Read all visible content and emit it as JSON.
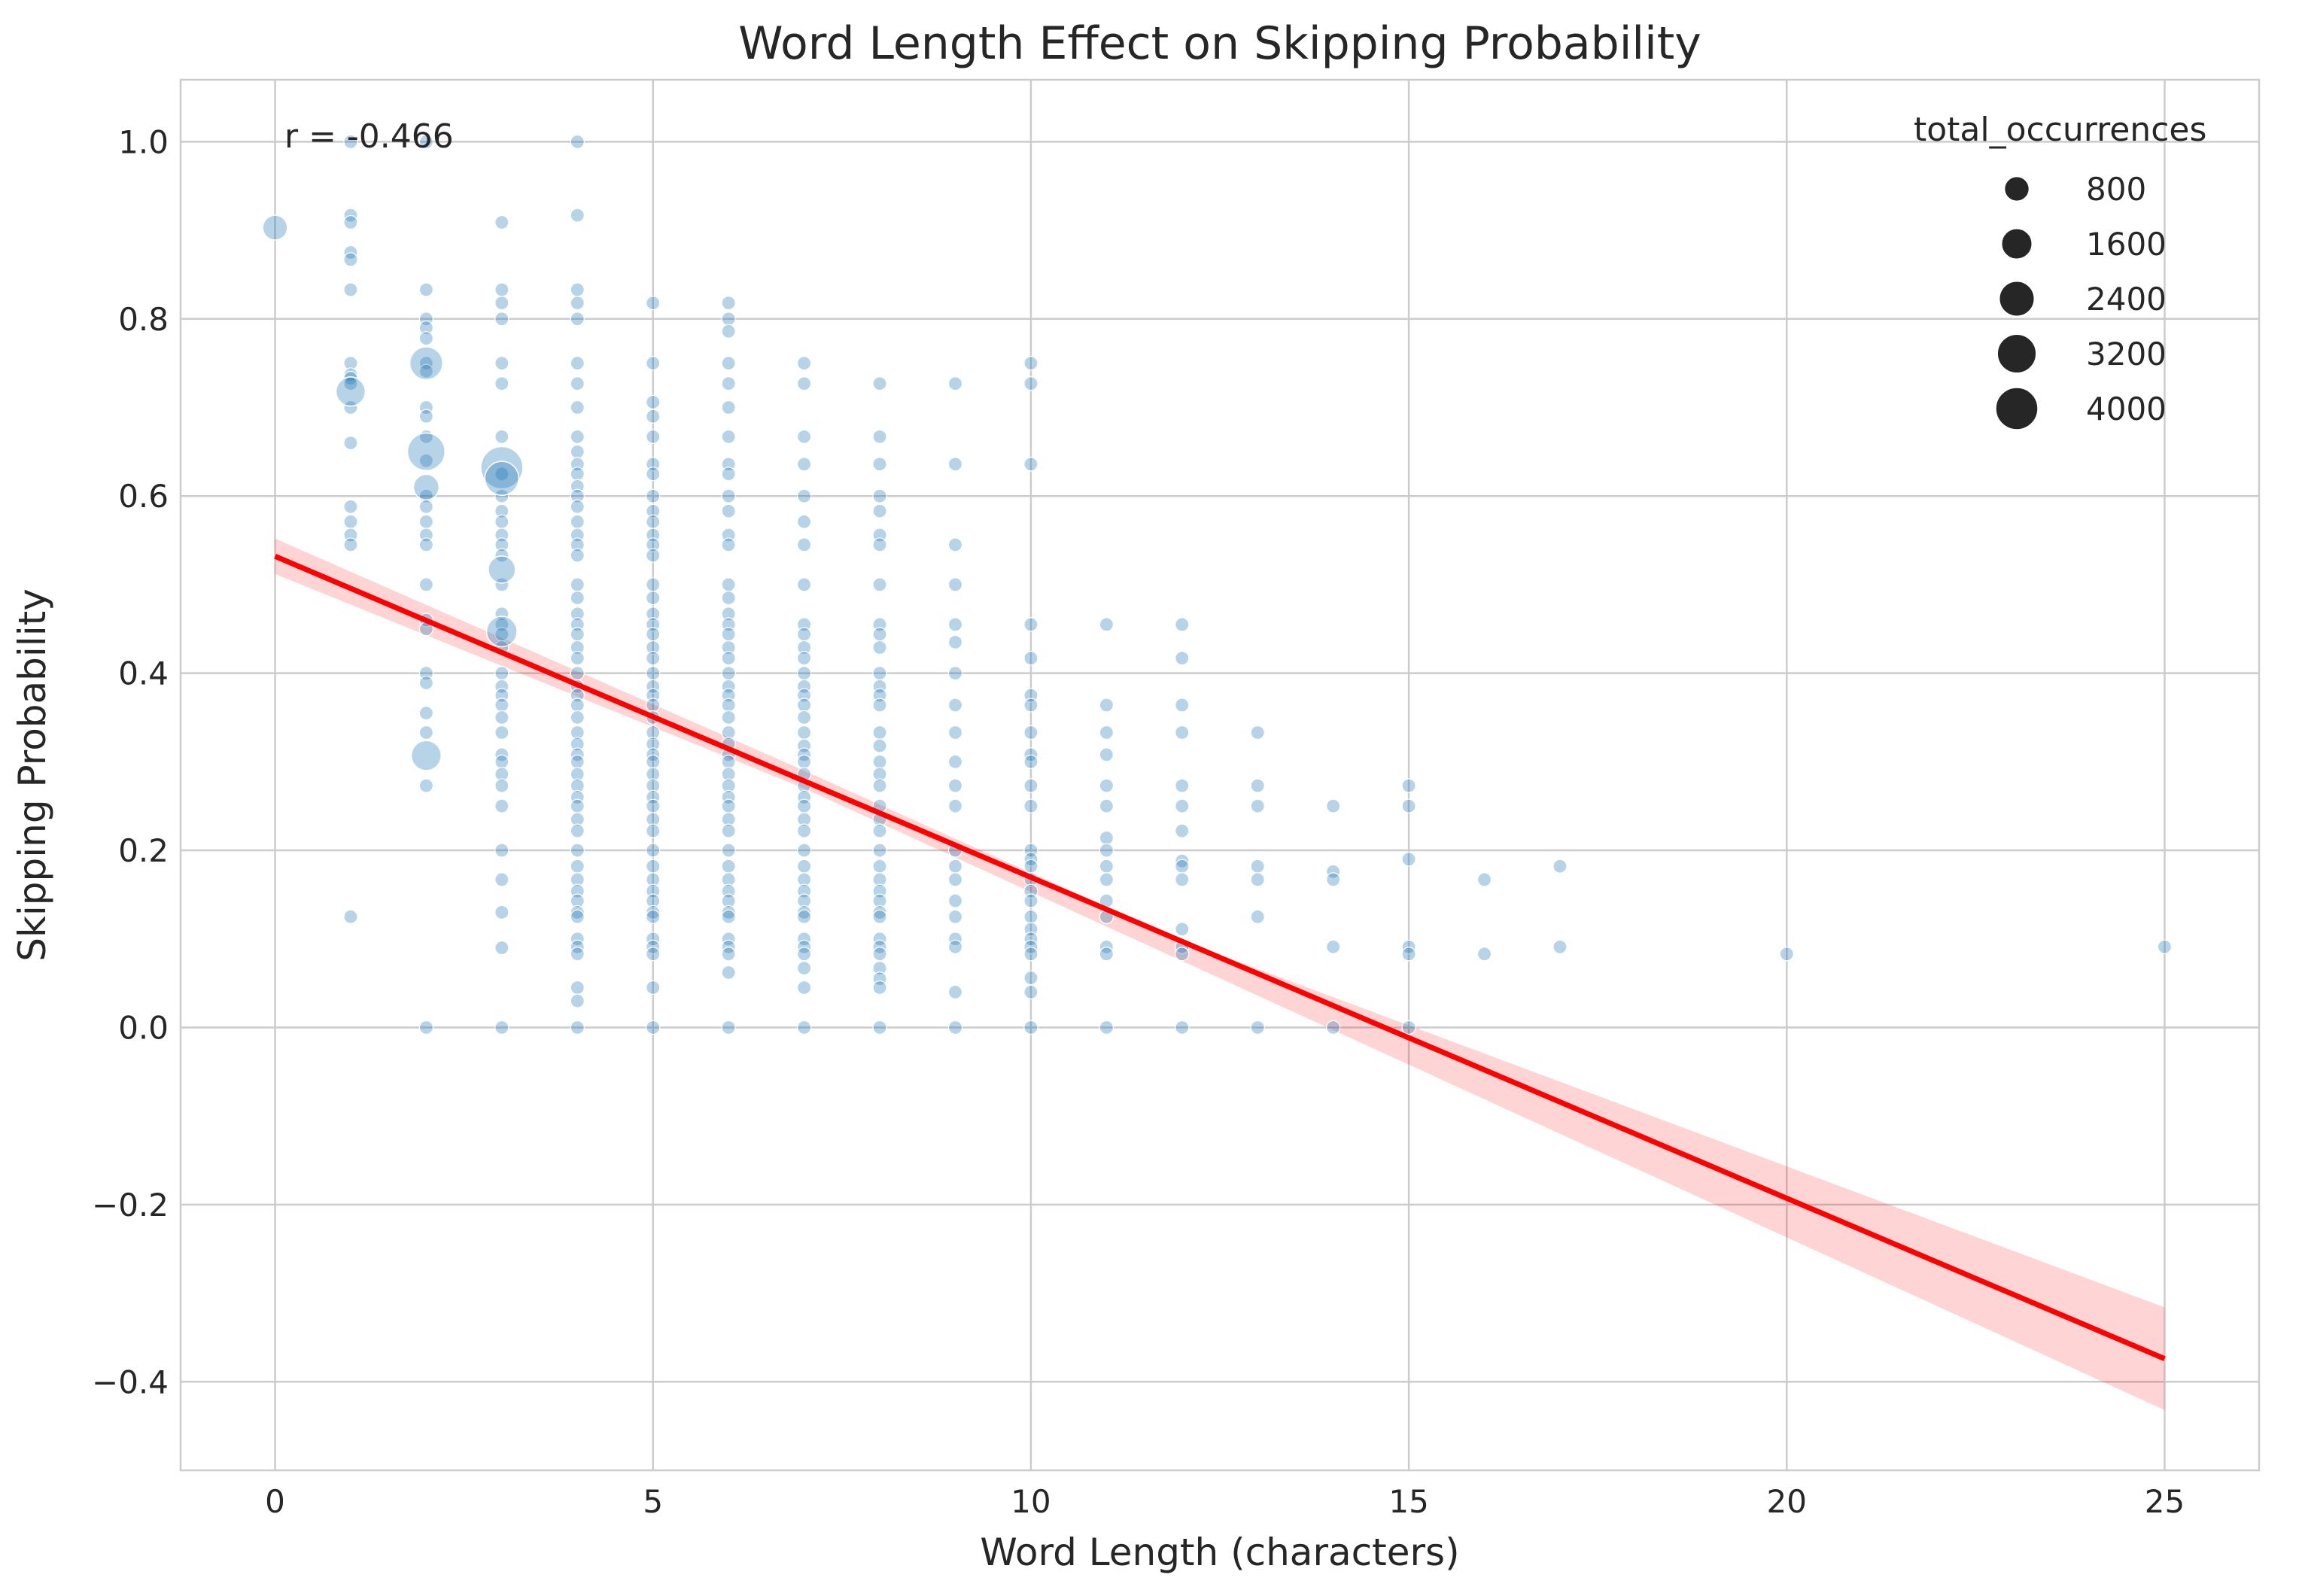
{
  "chart_data": {
    "type": "scatter",
    "title": "Word Length Effect on Skipping Probability",
    "xlabel": "Word Length (characters)",
    "ylabel": "Skipping Probability",
    "xlim": [
      -1.25,
      26.25
    ],
    "ylim": [
      -0.5,
      1.07
    ],
    "x_ticks": [
      0,
      5,
      10,
      15,
      20,
      25
    ],
    "x_tick_labels": [
      "0",
      "5",
      "10",
      "15",
      "20",
      "25"
    ],
    "y_ticks": [
      -0.4,
      -0.2,
      0.0,
      0.2,
      0.4,
      0.6,
      0.8,
      1.0
    ],
    "y_tick_labels": [
      "−0.4",
      "−0.2",
      "0.0",
      "0.2",
      "0.4",
      "0.6",
      "0.8",
      "1.0"
    ],
    "grid": true,
    "annotation": "r = -0.466",
    "legend": {
      "title": "total_occurrences",
      "placement": "top-right",
      "entries": [
        {
          "label": "800",
          "value": 800
        },
        {
          "label": "1600",
          "value": 1600
        },
        {
          "label": "2400",
          "value": 2400
        },
        {
          "label": "3200",
          "value": 3200
        },
        {
          "label": "4000",
          "value": 4000
        }
      ]
    },
    "colors": {
      "points": "#1f77b4",
      "regression": "#ff0000",
      "band": "#ff0000",
      "grid": "#cccccc",
      "frame": "#cccccc"
    },
    "regression": {
      "start": [
        0,
        0.532
      ],
      "end": [
        25,
        -0.374
      ],
      "ci_low": [
        [
          0,
          0.512
        ],
        [
          7,
          0.27
        ],
        [
          12,
          0.075
        ],
        [
          25,
          -0.432
        ]
      ],
      "ci_high": [
        [
          0,
          0.552
        ],
        [
          7,
          0.29
        ],
        [
          12,
          0.098
        ],
        [
          25,
          -0.316
        ]
      ]
    },
    "big_points": [
      {
        "x": 0,
        "y": 0.903,
        "size": 800
      },
      {
        "x": 1,
        "y": 0.718,
        "size": 1400
      },
      {
        "x": 2,
        "y": 0.75,
        "size": 2000
      },
      {
        "x": 2,
        "y": 0.65,
        "size": 2900
      },
      {
        "x": 2,
        "y": 0.61,
        "size": 900
      },
      {
        "x": 2,
        "y": 0.307,
        "size": 1500
      },
      {
        "x": 3,
        "y": 0.632,
        "size": 4000
      },
      {
        "x": 3,
        "y": 0.62,
        "size": 2200
      },
      {
        "x": 3,
        "y": 0.517,
        "size": 1100
      },
      {
        "x": 3,
        "y": 0.447,
        "size": 1600
      }
    ],
    "series": [
      {
        "x": 1,
        "y": [
          1.0,
          0.917,
          0.909,
          0.875,
          0.867,
          0.833,
          0.75,
          0.737,
          0.733,
          0.727,
          0.7,
          0.66,
          0.588,
          0.571,
          0.556,
          0.545,
          0.125
        ]
      },
      {
        "x": 2,
        "y": [
          1.0,
          0.833,
          0.8,
          0.79,
          0.778,
          0.75,
          0.741,
          0.7,
          0.69,
          0.667,
          0.64,
          0.6,
          0.588,
          0.571,
          0.556,
          0.545,
          0.5,
          0.46,
          0.45,
          0.4,
          0.389,
          0.355,
          0.333,
          0.273,
          0.0
        ]
      },
      {
        "x": 3,
        "y": [
          0.909,
          0.833,
          0.818,
          0.8,
          0.75,
          0.727,
          0.667,
          0.625,
          0.6,
          0.583,
          0.571,
          0.556,
          0.545,
          0.533,
          0.5,
          0.467,
          0.455,
          0.444,
          0.429,
          0.4,
          0.385,
          0.375,
          0.364,
          0.35,
          0.333,
          0.308,
          0.3,
          0.286,
          0.273,
          0.25,
          0.2,
          0.167,
          0.13,
          0.09,
          0.0
        ]
      },
      {
        "x": 4,
        "y": [
          1.0,
          0.917,
          0.833,
          0.818,
          0.8,
          0.75,
          0.727,
          0.7,
          0.667,
          0.65,
          0.636,
          0.625,
          0.611,
          0.6,
          0.588,
          0.571,
          0.556,
          0.545,
          0.533,
          0.5,
          0.485,
          0.467,
          0.455,
          0.444,
          0.429,
          0.417,
          0.4,
          0.385,
          0.375,
          0.364,
          0.35,
          0.333,
          0.32,
          0.308,
          0.3,
          0.286,
          0.273,
          0.26,
          0.25,
          0.235,
          0.222,
          0.2,
          0.182,
          0.167,
          0.154,
          0.143,
          0.13,
          0.125,
          0.1,
          0.091,
          0.083,
          0.045,
          0.03,
          0.0
        ]
      },
      {
        "x": 5,
        "y": [
          0.818,
          0.75,
          0.706,
          0.69,
          0.667,
          0.636,
          0.625,
          0.6,
          0.583,
          0.571,
          0.556,
          0.545,
          0.533,
          0.5,
          0.485,
          0.467,
          0.455,
          0.444,
          0.429,
          0.417,
          0.4,
          0.385,
          0.375,
          0.364,
          0.35,
          0.333,
          0.32,
          0.308,
          0.3,
          0.286,
          0.273,
          0.26,
          0.25,
          0.235,
          0.222,
          0.2,
          0.182,
          0.167,
          0.154,
          0.143,
          0.13,
          0.125,
          0.1,
          0.091,
          0.083,
          0.045,
          0.0
        ]
      },
      {
        "x": 6,
        "y": [
          0.818,
          0.8,
          0.786,
          0.75,
          0.727,
          0.7,
          0.667,
          0.636,
          0.625,
          0.6,
          0.583,
          0.556,
          0.545,
          0.5,
          0.485,
          0.467,
          0.455,
          0.444,
          0.429,
          0.417,
          0.4,
          0.385,
          0.375,
          0.364,
          0.35,
          0.333,
          0.32,
          0.308,
          0.3,
          0.286,
          0.273,
          0.26,
          0.25,
          0.235,
          0.222,
          0.2,
          0.182,
          0.167,
          0.154,
          0.143,
          0.13,
          0.125,
          0.1,
          0.091,
          0.083,
          0.062,
          0.0
        ]
      },
      {
        "x": 7,
        "y": [
          0.75,
          0.727,
          0.667,
          0.636,
          0.6,
          0.571,
          0.545,
          0.5,
          0.455,
          0.444,
          0.429,
          0.417,
          0.4,
          0.385,
          0.375,
          0.364,
          0.35,
          0.333,
          0.318,
          0.308,
          0.3,
          0.286,
          0.273,
          0.26,
          0.25,
          0.235,
          0.222,
          0.2,
          0.182,
          0.167,
          0.154,
          0.143,
          0.13,
          0.125,
          0.1,
          0.091,
          0.083,
          0.067,
          0.045,
          0.0
        ]
      },
      {
        "x": 8,
        "y": [
          0.727,
          0.667,
          0.636,
          0.6,
          0.583,
          0.556,
          0.545,
          0.5,
          0.455,
          0.444,
          0.429,
          0.4,
          0.385,
          0.375,
          0.364,
          0.333,
          0.318,
          0.3,
          0.286,
          0.273,
          0.25,
          0.235,
          0.222,
          0.2,
          0.182,
          0.167,
          0.154,
          0.143,
          0.13,
          0.125,
          0.1,
          0.091,
          0.083,
          0.067,
          0.055,
          0.045,
          0.0
        ]
      },
      {
        "x": 9,
        "y": [
          0.727,
          0.636,
          0.545,
          0.5,
          0.455,
          0.435,
          0.4,
          0.364,
          0.333,
          0.3,
          0.273,
          0.25,
          0.2,
          0.182,
          0.167,
          0.143,
          0.125,
          0.1,
          0.091,
          0.04,
          0.0
        ]
      },
      {
        "x": 10,
        "y": [
          0.75,
          0.727,
          0.636,
          0.455,
          0.417,
          0.375,
          0.364,
          0.333,
          0.308,
          0.3,
          0.273,
          0.25,
          0.2,
          0.19,
          0.182,
          0.167,
          0.154,
          0.143,
          0.125,
          0.111,
          0.1,
          0.091,
          0.083,
          0.056,
          0.04,
          0.0
        ]
      },
      {
        "x": 11,
        "y": [
          0.455,
          0.364,
          0.333,
          0.308,
          0.273,
          0.25,
          0.214,
          0.2,
          0.182,
          0.167,
          0.143,
          0.125,
          0.091,
          0.083,
          0.0
        ]
      },
      {
        "x": 12,
        "y": [
          0.455,
          0.417,
          0.364,
          0.333,
          0.273,
          0.25,
          0.222,
          0.188,
          0.182,
          0.167,
          0.111,
          0.091,
          0.083,
          0.0
        ]
      },
      {
        "x": 13,
        "y": [
          0.333,
          0.273,
          0.25,
          0.182,
          0.167,
          0.125,
          0.0
        ]
      },
      {
        "x": 14,
        "y": [
          0.25,
          0.176,
          0.167,
          0.091,
          0.0
        ]
      },
      {
        "x": 15,
        "y": [
          0.273,
          0.25,
          0.19,
          0.091,
          0.083,
          0.0
        ]
      },
      {
        "x": 16,
        "y": [
          0.167,
          0.083
        ]
      },
      {
        "x": 17,
        "y": [
          0.182,
          0.091
        ]
      },
      {
        "x": 20,
        "y": [
          0.083
        ]
      },
      {
        "x": 25,
        "y": [
          0.091
        ]
      }
    ]
  }
}
